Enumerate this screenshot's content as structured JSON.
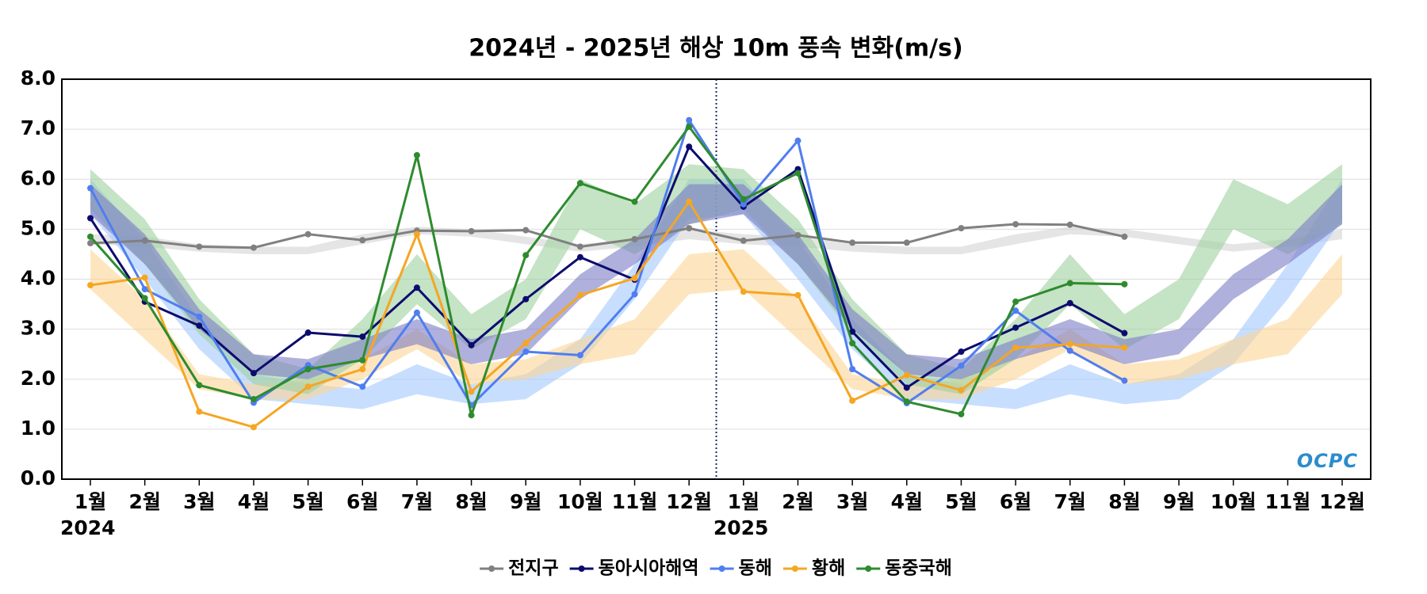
{
  "chart_data": {
    "type": "line",
    "title": "2024년 - 2025년 해상 10m 풍속 변화(m/s)",
    "categories": [
      "1월",
      "2월",
      "3월",
      "4월",
      "5월",
      "6월",
      "7월",
      "8월",
      "9월",
      "10월",
      "11월",
      "12월",
      "1월",
      "2월",
      "3월",
      "4월",
      "5월",
      "6월",
      "7월",
      "8월",
      "9월",
      "10월",
      "11월",
      "12월"
    ],
    "x_sublabels": [
      "2024",
      null,
      null,
      null,
      null,
      null,
      null,
      null,
      null,
      null,
      null,
      null,
      "2025",
      null,
      null,
      null,
      null,
      null,
      null,
      null,
      null,
      null,
      null,
      null
    ],
    "ylim": [
      0,
      8
    ],
    "yticks": [
      {
        "value": 0,
        "label": "0.0"
      },
      {
        "value": 1,
        "label": "1.0"
      },
      {
        "value": 2,
        "label": "2.0"
      },
      {
        "value": 3,
        "label": "3.0"
      },
      {
        "value": 4,
        "label": "4.0"
      },
      {
        "value": 5,
        "label": "5.0"
      },
      {
        "value": 6,
        "label": "6.0"
      },
      {
        "value": 7,
        "label": "7.0"
      },
      {
        "value": 8,
        "label": "8.0"
      }
    ],
    "grid": true,
    "logo": "OCPC",
    "bands": [
      {
        "color": "#d4d4d4",
        "low": [
          4.7,
          4.65,
          4.55,
          4.5,
          4.5,
          4.7,
          4.9,
          4.85,
          4.7,
          4.55,
          4.65,
          4.8,
          4.7,
          4.65,
          4.55,
          4.5,
          4.5,
          4.7,
          4.9,
          4.85,
          4.7,
          4.55,
          4.65,
          4.8
        ],
        "high": [
          4.9,
          4.85,
          4.7,
          4.65,
          4.65,
          4.9,
          5.05,
          5.0,
          4.85,
          4.7,
          4.8,
          5.0,
          4.9,
          4.85,
          4.7,
          4.65,
          4.65,
          4.9,
          5.05,
          5.0,
          4.85,
          4.7,
          4.8,
          5.0
        ]
      },
      {
        "color": "#a4c8ff",
        "low": [
          5.3,
          4.0,
          2.6,
          1.6,
          1.5,
          1.4,
          1.7,
          1.5,
          1.6,
          2.3,
          3.6,
          5.2,
          5.3,
          4.0,
          2.6,
          1.6,
          1.5,
          1.4,
          1.7,
          1.5,
          1.6,
          2.3,
          3.6,
          5.2
        ],
        "high": [
          6.0,
          4.8,
          3.2,
          2.1,
          1.9,
          1.8,
          2.3,
          1.9,
          2.1,
          2.8,
          4.3,
          6.0,
          6.0,
          4.8,
          3.2,
          2.1,
          1.9,
          1.8,
          2.3,
          1.9,
          2.1,
          2.8,
          4.3,
          6.0
        ]
      },
      {
        "color": "#fcd594",
        "low": [
          3.8,
          2.8,
          1.8,
          1.6,
          1.6,
          2.0,
          2.6,
          1.9,
          2.0,
          2.3,
          2.5,
          3.7,
          3.8,
          2.8,
          1.8,
          1.6,
          1.6,
          2.0,
          2.6,
          1.9,
          2.0,
          2.3,
          2.5,
          3.7
        ],
        "high": [
          4.6,
          3.6,
          2.1,
          1.9,
          2.0,
          2.4,
          3.0,
          2.3,
          2.4,
          2.8,
          3.2,
          4.5,
          4.6,
          3.6,
          2.1,
          1.9,
          2.0,
          2.4,
          3.0,
          2.3,
          2.4,
          2.8,
          3.2,
          4.5
        ]
      },
      {
        "color": "#9fd09f",
        "low": [
          5.4,
          4.3,
          2.9,
          1.9,
          1.7,
          2.4,
          3.5,
          2.6,
          3.2,
          5.0,
          4.5,
          5.1,
          5.4,
          4.3,
          2.9,
          1.9,
          1.7,
          2.4,
          3.5,
          2.6,
          3.2,
          5.0,
          4.5,
          5.1
        ],
        "high": [
          6.2,
          5.2,
          3.6,
          2.5,
          2.2,
          3.2,
          4.5,
          3.3,
          4.0,
          6.0,
          5.5,
          6.3,
          6.2,
          5.2,
          3.6,
          2.5,
          2.2,
          3.2,
          4.5,
          3.3,
          4.0,
          6.0,
          5.5,
          6.3
        ]
      },
      {
        "color": "#7c7cc4",
        "low": [
          5.3,
          4.3,
          3.0,
          2.1,
          2.0,
          2.4,
          2.7,
          2.3,
          2.5,
          3.6,
          4.3,
          5.1,
          5.3,
          4.3,
          3.0,
          2.1,
          2.0,
          2.4,
          2.7,
          2.3,
          2.5,
          3.6,
          4.3,
          5.1
        ],
        "high": [
          5.9,
          4.9,
          3.4,
          2.5,
          2.4,
          2.8,
          3.2,
          2.8,
          3.0,
          4.1,
          4.8,
          5.9,
          5.9,
          4.9,
          3.4,
          2.5,
          2.4,
          2.8,
          3.2,
          2.8,
          3.0,
          4.1,
          4.8,
          5.9
        ]
      }
    ],
    "series": [
      {
        "name": "전지구",
        "color": "#808080",
        "values": [
          4.72,
          4.77,
          4.65,
          4.63,
          4.9,
          4.78,
          4.97,
          4.96,
          4.98,
          4.65,
          4.8,
          5.02,
          4.77,
          4.88,
          4.73,
          4.73,
          5.02,
          5.1,
          5.09,
          4.85,
          null,
          null,
          null,
          null
        ]
      },
      {
        "name": "동아시아해역",
        "color": "#0c0c6e",
        "values": [
          5.22,
          3.55,
          3.07,
          2.12,
          2.93,
          2.85,
          3.83,
          2.68,
          3.6,
          4.44,
          3.99,
          6.65,
          5.45,
          6.2,
          2.95,
          1.83,
          2.55,
          3.03,
          3.52,
          2.92,
          null,
          null,
          null,
          null
        ]
      },
      {
        "name": "동해",
        "color": "#4f7ef0",
        "values": [
          5.82,
          3.8,
          3.25,
          1.53,
          2.28,
          1.85,
          3.33,
          1.48,
          2.55,
          2.48,
          3.7,
          7.18,
          5.5,
          6.77,
          2.2,
          1.52,
          2.27,
          3.37,
          2.57,
          1.97,
          null,
          null,
          null,
          null
        ]
      },
      {
        "name": "황해",
        "color": "#f5a623",
        "values": [
          3.88,
          4.03,
          1.35,
          1.04,
          1.85,
          2.2,
          4.9,
          1.75,
          2.72,
          3.68,
          4.02,
          5.55,
          3.75,
          3.68,
          1.57,
          2.08,
          1.78,
          2.63,
          2.7,
          2.63,
          null,
          null,
          null,
          null
        ]
      },
      {
        "name": "동중국해",
        "color": "#2e8b2e",
        "values": [
          4.85,
          3.62,
          1.88,
          1.6,
          2.2,
          2.38,
          6.48,
          1.28,
          4.48,
          5.92,
          5.55,
          7.05,
          5.6,
          6.12,
          2.72,
          1.55,
          1.3,
          3.55,
          3.92,
          3.9,
          null,
          null,
          null,
          null
        ]
      }
    ]
  }
}
